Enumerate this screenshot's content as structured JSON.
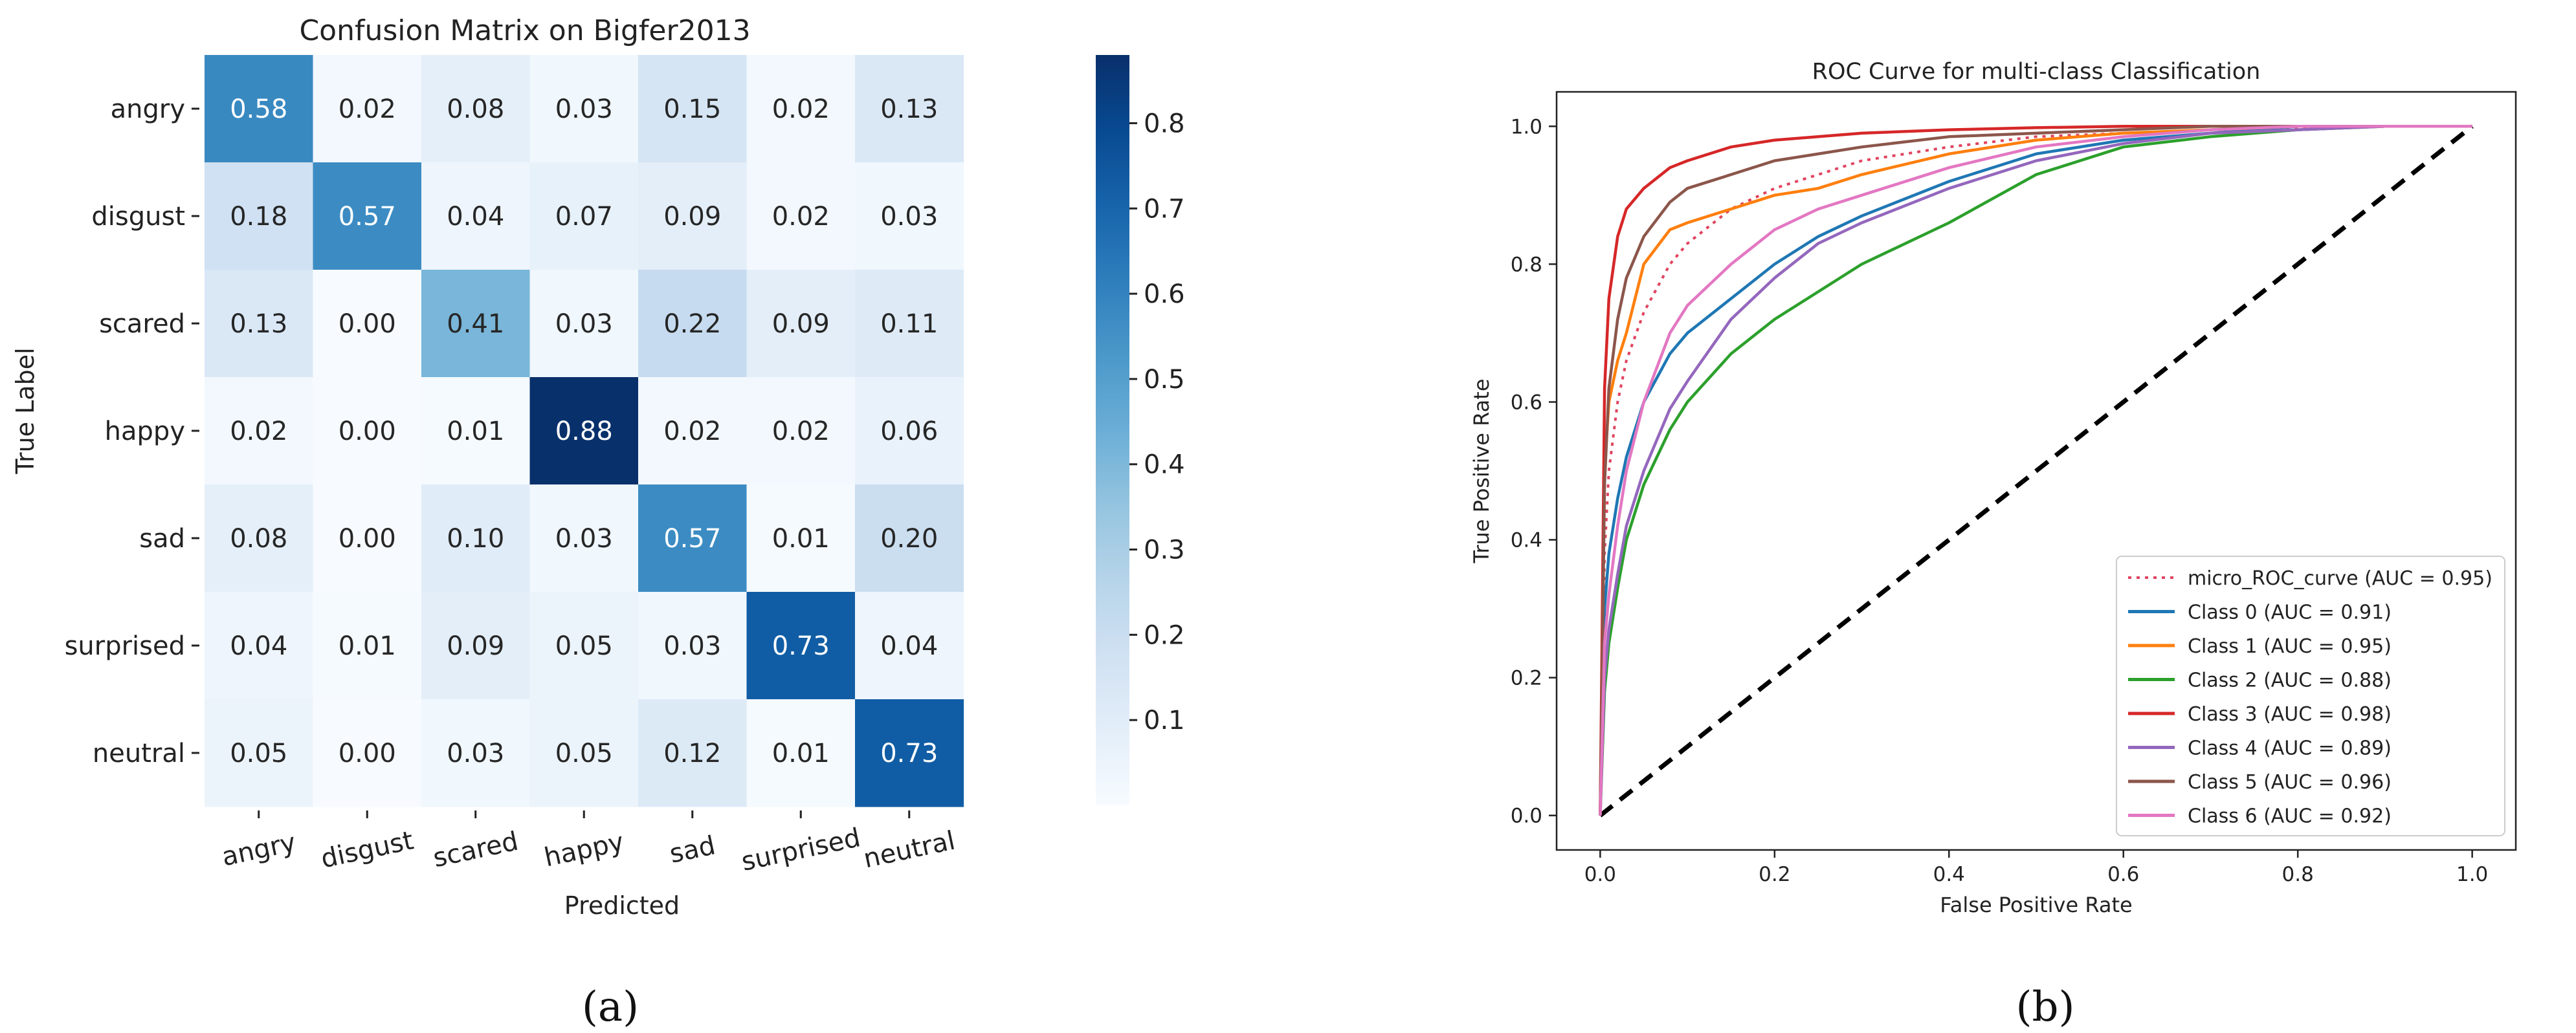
{
  "chart_data": [
    {
      "type": "heatmap",
      "title": "Confusion Matrix on Bigfer2013",
      "xlabel": "Predicted",
      "ylabel": "True Label",
      "panel_label": "(a)",
      "row_labels": [
        "angry",
        "disgust",
        "scared",
        "happy",
        "sad",
        "surprised",
        "neutral"
      ],
      "col_labels": [
        "angry",
        "disgust",
        "scared",
        "happy",
        "sad",
        "surprised",
        "neutral"
      ],
      "matrix": [
        [
          0.58,
          0.02,
          0.08,
          0.03,
          0.15,
          0.02,
          0.13
        ],
        [
          0.18,
          0.57,
          0.04,
          0.07,
          0.09,
          0.02,
          0.03
        ],
        [
          0.13,
          0.0,
          0.41,
          0.03,
          0.22,
          0.09,
          0.11
        ],
        [
          0.02,
          0.0,
          0.01,
          0.88,
          0.02,
          0.02,
          0.06
        ],
        [
          0.08,
          0.0,
          0.1,
          0.03,
          0.57,
          0.01,
          0.2
        ],
        [
          0.04,
          0.01,
          0.09,
          0.05,
          0.03,
          0.73,
          0.04
        ],
        [
          0.05,
          0.0,
          0.03,
          0.05,
          0.12,
          0.01,
          0.73
        ]
      ],
      "colorbar": {
        "cmap": "Blues",
        "vmin": 0.0,
        "vmax": 0.88,
        "ticks": [
          0.1,
          0.2,
          0.3,
          0.4,
          0.5,
          0.6,
          0.7,
          0.8
        ],
        "tick_labels": [
          "0.1",
          "0.2",
          "0.3",
          "0.4",
          "0.5",
          "0.6",
          "0.7",
          "0.8"
        ]
      }
    },
    {
      "type": "line",
      "title": "ROC Curve for multi-class Classification",
      "xlabel": "False Positive Rate",
      "ylabel": "True Positive Rate",
      "panel_label": "(b)",
      "xlim": [
        -0.05,
        1.05
      ],
      "ylim": [
        -0.05,
        1.05
      ],
      "xticks": [
        0.0,
        0.2,
        0.4,
        0.6,
        0.8,
        1.0
      ],
      "xtick_labels": [
        "0.0",
        "0.2",
        "0.4",
        "0.6",
        "0.8",
        "1.0"
      ],
      "yticks": [
        0.0,
        0.2,
        0.4,
        0.6,
        0.8,
        1.0
      ],
      "ytick_labels": [
        "0.0",
        "0.2",
        "0.4",
        "0.6",
        "0.8",
        "1.0"
      ],
      "legend_position": "lower-right",
      "diagonal": {
        "x": [
          0,
          1
        ],
        "y": [
          0,
          1
        ],
        "color": "#000000",
        "style": "dashed"
      },
      "series": [
        {
          "name": "micro_ROC_curve (AUC = 0.95)",
          "color": "#e0445e",
          "style": "dotted",
          "x": [
            0,
            0.005,
            0.01,
            0.02,
            0.03,
            0.05,
            0.08,
            0.1,
            0.15,
            0.2,
            0.25,
            0.3,
            0.4,
            0.5,
            0.6,
            0.7,
            0.8,
            0.9,
            1.0
          ],
          "y": [
            0,
            0.38,
            0.5,
            0.6,
            0.66,
            0.73,
            0.8,
            0.83,
            0.88,
            0.91,
            0.93,
            0.95,
            0.97,
            0.985,
            0.99,
            0.995,
            0.998,
            1.0,
            1.0
          ]
        },
        {
          "name": "Class 0 (AUC = 0.91)",
          "color": "#1f77b4",
          "style": "solid",
          "x": [
            0,
            0.005,
            0.01,
            0.02,
            0.03,
            0.05,
            0.08,
            0.1,
            0.15,
            0.2,
            0.25,
            0.3,
            0.4,
            0.5,
            0.6,
            0.7,
            0.8,
            0.9,
            1.0
          ],
          "y": [
            0,
            0.3,
            0.38,
            0.46,
            0.52,
            0.6,
            0.67,
            0.7,
            0.75,
            0.8,
            0.84,
            0.87,
            0.92,
            0.96,
            0.98,
            0.99,
            1.0,
            1.0,
            1.0
          ]
        },
        {
          "name": "Class 1 (AUC = 0.95)",
          "color": "#ff7f0e",
          "style": "solid",
          "x": [
            0,
            0.005,
            0.01,
            0.02,
            0.03,
            0.05,
            0.08,
            0.1,
            0.15,
            0.2,
            0.25,
            0.3,
            0.4,
            0.5,
            0.6,
            0.7,
            0.8,
            0.9,
            1.0
          ],
          "y": [
            0,
            0.5,
            0.6,
            0.66,
            0.7,
            0.8,
            0.85,
            0.86,
            0.88,
            0.9,
            0.91,
            0.93,
            0.96,
            0.98,
            0.99,
            0.995,
            1.0,
            1.0,
            1.0
          ]
        },
        {
          "name": "Class 2 (AUC = 0.88)",
          "color": "#2ca02c",
          "style": "solid",
          "x": [
            0,
            0.005,
            0.01,
            0.02,
            0.03,
            0.05,
            0.08,
            0.1,
            0.15,
            0.2,
            0.25,
            0.3,
            0.4,
            0.5,
            0.6,
            0.7,
            0.8,
            0.9,
            1.0
          ],
          "y": [
            0,
            0.18,
            0.25,
            0.33,
            0.4,
            0.48,
            0.56,
            0.6,
            0.67,
            0.72,
            0.76,
            0.8,
            0.86,
            0.93,
            0.97,
            0.985,
            0.995,
            1.0,
            1.0
          ]
        },
        {
          "name": "Class 3 (AUC = 0.98)",
          "color": "#d62728",
          "style": "solid",
          "x": [
            0,
            0.005,
            0.01,
            0.02,
            0.03,
            0.05,
            0.08,
            0.1,
            0.15,
            0.2,
            0.25,
            0.3,
            0.4,
            0.5,
            0.6,
            0.7,
            0.8,
            0.9,
            1.0
          ],
          "y": [
            0,
            0.62,
            0.75,
            0.84,
            0.88,
            0.91,
            0.94,
            0.95,
            0.97,
            0.98,
            0.985,
            0.99,
            0.995,
            0.998,
            1.0,
            1.0,
            1.0,
            1.0,
            1.0
          ]
        },
        {
          "name": "Class 4 (AUC = 0.89)",
          "color": "#9467bd",
          "style": "solid",
          "x": [
            0,
            0.005,
            0.01,
            0.02,
            0.03,
            0.05,
            0.08,
            0.1,
            0.15,
            0.2,
            0.25,
            0.3,
            0.4,
            0.5,
            0.6,
            0.7,
            0.8,
            0.9,
            1.0
          ],
          "y": [
            0,
            0.2,
            0.27,
            0.35,
            0.42,
            0.5,
            0.59,
            0.63,
            0.72,
            0.78,
            0.83,
            0.86,
            0.91,
            0.95,
            0.975,
            0.99,
            0.995,
            1.0,
            1.0
          ]
        },
        {
          "name": "Class 5 (AUC = 0.96)",
          "color": "#8c564b",
          "style": "solid",
          "x": [
            0,
            0.005,
            0.01,
            0.02,
            0.03,
            0.05,
            0.08,
            0.1,
            0.15,
            0.2,
            0.25,
            0.3,
            0.4,
            0.5,
            0.6,
            0.7,
            0.8,
            0.9,
            1.0
          ],
          "y": [
            0,
            0.48,
            0.62,
            0.72,
            0.78,
            0.84,
            0.89,
            0.91,
            0.93,
            0.95,
            0.96,
            0.97,
            0.985,
            0.99,
            0.995,
            1.0,
            1.0,
            1.0,
            1.0
          ]
        },
        {
          "name": "Class 6 (AUC = 0.92)",
          "color": "#e377c2",
          "style": "solid",
          "x": [
            0,
            0.005,
            0.01,
            0.02,
            0.03,
            0.05,
            0.08,
            0.1,
            0.15,
            0.2,
            0.25,
            0.3,
            0.4,
            0.5,
            0.6,
            0.7,
            0.8,
            0.9,
            1.0
          ],
          "y": [
            0,
            0.25,
            0.32,
            0.42,
            0.5,
            0.6,
            0.7,
            0.74,
            0.8,
            0.85,
            0.88,
            0.9,
            0.94,
            0.97,
            0.985,
            0.995,
            1.0,
            1.0,
            1.0
          ]
        }
      ]
    }
  ]
}
